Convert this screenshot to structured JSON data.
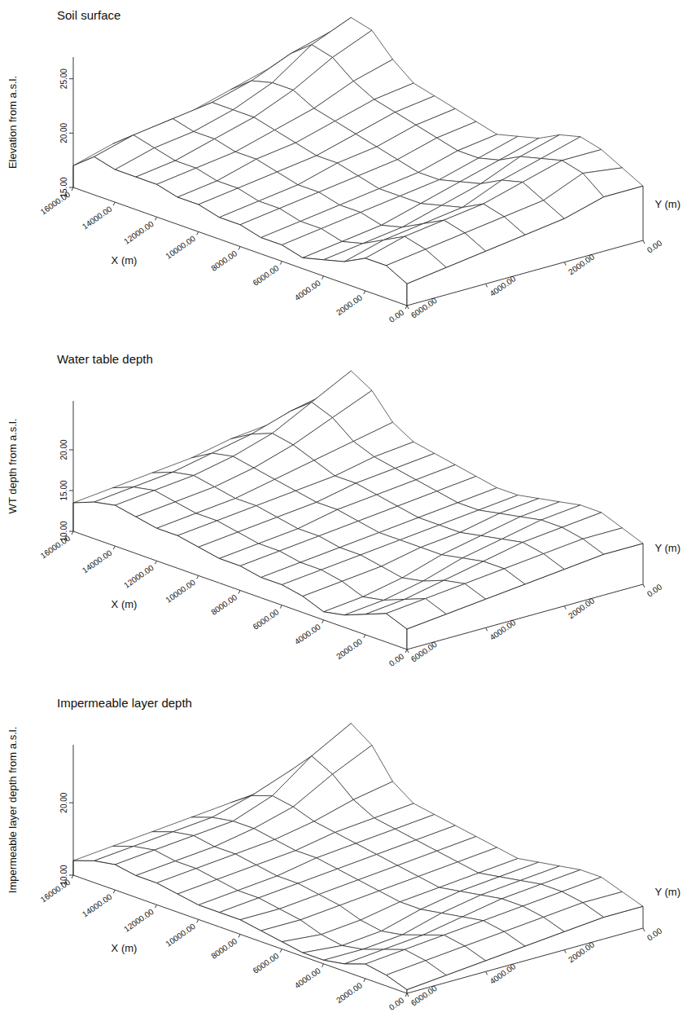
{
  "chart_data": [
    {
      "type": "surface",
      "title": "Soil surface",
      "xlabel": "X (m)",
      "ylabel": "Y (m)",
      "zlabel": "Elevation from a.s.l.",
      "x": [
        0,
        1000,
        2000,
        3000,
        4000,
        5000,
        6000,
        7000,
        8000,
        9000,
        10000,
        11000,
        12000,
        13000,
        14000,
        15000,
        16000
      ],
      "y": [
        0,
        1000,
        2000,
        3000,
        4000,
        5000,
        6000
      ],
      "z": [
        [
          20,
          21,
          22,
          22.5,
          22,
          21,
          20.5,
          20,
          20.5,
          21,
          21.5,
          22,
          23.5,
          25.5,
          26,
          24,
          22
        ],
        [
          20,
          21.5,
          22,
          21.5,
          21,
          20,
          19.5,
          19.5,
          20,
          20.5,
          21,
          21.5,
          22.5,
          24,
          24.5,
          23,
          21
        ],
        [
          19,
          20,
          21,
          20.5,
          19.5,
          19,
          18.5,
          18.5,
          19,
          19.5,
          20,
          20.5,
          21,
          22,
          22,
          21.5,
          20
        ],
        [
          18.5,
          19.5,
          20,
          19,
          18.5,
          18,
          18,
          18,
          18.5,
          19,
          19,
          19.5,
          20,
          20.5,
          20.5,
          20.5,
          19
        ],
        [
          18,
          19,
          19.5,
          18.5,
          17.5,
          17,
          17.5,
          17.5,
          18,
          18,
          18.5,
          19,
          19,
          19.5,
          19.5,
          20,
          18.5
        ],
        [
          17.5,
          18.5,
          19,
          18,
          17,
          16.5,
          17,
          17,
          17.5,
          17.5,
          18,
          18,
          18.5,
          18.5,
          19,
          19.5,
          18
        ],
        [
          17,
          18,
          18,
          17,
          16.5,
          16,
          16.5,
          16.5,
          17,
          17,
          17.5,
          17.5,
          18,
          18,
          18,
          18.5,
          17
        ]
      ],
      "xlim": [
        0,
        16000
      ],
      "ylim": [
        0,
        6000
      ],
      "zlim": [
        15,
        27
      ],
      "xticks": [
        {
          "value": 0,
          "label": "0.00"
        },
        {
          "value": 2000,
          "label": "2000.00"
        },
        {
          "value": 4000,
          "label": "4000.00"
        },
        {
          "value": 6000,
          "label": "6000.00"
        },
        {
          "value": 8000,
          "label": "8000.00"
        },
        {
          "value": 10000,
          "label": "10000.00"
        },
        {
          "value": 12000,
          "label": "12000.00"
        },
        {
          "value": 14000,
          "label": "14000.00"
        },
        {
          "value": 16000,
          "label": "16000.00"
        }
      ],
      "yticks": [
        {
          "value": 0,
          "label": "0.00"
        },
        {
          "value": 2000,
          "label": "2000.00"
        },
        {
          "value": 4000,
          "label": "4000.00"
        },
        {
          "value": 6000,
          "label": "6000.00"
        }
      ],
      "zticks": [
        {
          "value": 15,
          "label": "15.00"
        },
        {
          "value": 20,
          "label": "20.00"
        },
        {
          "value": 25,
          "label": "25.00"
        }
      ]
    },
    {
      "type": "surface",
      "title": "Water table depth",
      "xlabel": "X (m)",
      "ylabel": "Y (m)",
      "zlabel": "WT depth from a.s.l.",
      "x": [
        0,
        1000,
        2000,
        3000,
        4000,
        5000,
        6000,
        7000,
        8000,
        9000,
        10000,
        11000,
        12000,
        13000,
        14000,
        15000,
        16000
      ],
      "y": [
        0,
        1000,
        2000,
        3000,
        4000,
        5000,
        6000
      ],
      "z": [
        [
          15,
          16,
          17,
          17,
          16.5,
          16,
          15.5,
          15.5,
          16,
          16.5,
          17,
          17.5,
          19,
          22,
          23.5,
          20,
          17
        ],
        [
          15,
          16,
          16.5,
          16.5,
          16,
          15.5,
          15,
          15,
          15.5,
          16,
          16.5,
          17,
          18,
          20,
          21,
          19,
          16.5
        ],
        [
          14.5,
          15.5,
          16,
          15.5,
          15,
          14.5,
          14.5,
          14.5,
          15,
          15.5,
          16,
          16,
          17,
          18,
          18.5,
          17.5,
          16
        ],
        [
          14,
          15,
          15,
          14.5,
          14,
          14,
          14,
          14,
          14.5,
          15,
          15,
          15.5,
          16,
          16.5,
          17,
          16.5,
          15
        ],
        [
          13.5,
          14.5,
          14,
          13,
          12.5,
          13,
          13.5,
          13.5,
          14,
          14,
          14.5,
          15,
          15,
          15.5,
          16,
          15.5,
          14.5
        ],
        [
          13,
          14,
          13,
          12,
          11.5,
          12.5,
          13,
          13,
          13.5,
          13.5,
          14,
          14.5,
          14.5,
          15,
          15.5,
          15,
          14
        ],
        [
          12.5,
          13.5,
          12.5,
          11.5,
          11,
          12,
          12.5,
          12.5,
          13,
          13,
          13.5,
          14,
          14,
          14.5,
          15,
          14.5,
          13.5
        ]
      ],
      "xlim": [
        0,
        16000
      ],
      "ylim": [
        0,
        6000
      ],
      "zlim": [
        10,
        26
      ],
      "xticks": [
        {
          "value": 0,
          "label": "0.00"
        },
        {
          "value": 2000,
          "label": "2000.00"
        },
        {
          "value": 4000,
          "label": "4000.00"
        },
        {
          "value": 6000,
          "label": "6000.00"
        },
        {
          "value": 8000,
          "label": "8000.00"
        },
        {
          "value": 10000,
          "label": "10000.00"
        },
        {
          "value": 12000,
          "label": "12000.00"
        },
        {
          "value": 14000,
          "label": "14000.00"
        },
        {
          "value": 16000,
          "label": "16000.00"
        }
      ],
      "yticks": [
        {
          "value": 0,
          "label": "0.00"
        },
        {
          "value": 2000,
          "label": "2000.00"
        },
        {
          "value": 4000,
          "label": "4000.00"
        },
        {
          "value": 6000,
          "label": "6000.00"
        }
      ],
      "zticks": [
        {
          "value": 10,
          "label": "10.00"
        },
        {
          "value": 15,
          "label": "15.00"
        },
        {
          "value": 20,
          "label": "20.00"
        }
      ]
    },
    {
      "type": "surface",
      "title": "Impermeable layer depth",
      "xlabel": "X (m)",
      "ylabel": "Y (m)",
      "zlabel": "Impermeable layer depth from a.s.l.",
      "x": [
        0,
        1000,
        2000,
        3000,
        4000,
        5000,
        6000,
        7000,
        8000,
        9000,
        10000,
        11000,
        12000,
        13000,
        14000,
        15000,
        16000
      ],
      "y": [
        0,
        1000,
        2000,
        3000,
        4000,
        5000,
        6000
      ],
      "z": [
        [
          13,
          14,
          15,
          15,
          14.5,
          14,
          13.5,
          14,
          14.5,
          15,
          15.5,
          16,
          18,
          22,
          24,
          19,
          15
        ],
        [
          13,
          14,
          14.5,
          14.5,
          14,
          13.5,
          13,
          13.5,
          14,
          14.5,
          15,
          15.5,
          17,
          19.5,
          21,
          18,
          14.5
        ],
        [
          12.5,
          13.5,
          14,
          14,
          13.5,
          13,
          12.5,
          13,
          13.5,
          14,
          14.5,
          15,
          15.5,
          16.5,
          17,
          16,
          14
        ],
        [
          12,
          13,
          13.5,
          13,
          12.5,
          12,
          12,
          12.5,
          13,
          13.5,
          14,
          14,
          14.5,
          15,
          15,
          14.5,
          13.5
        ],
        [
          11.5,
          12.5,
          13,
          12,
          11,
          10.5,
          11,
          12,
          12.5,
          13,
          13,
          13.5,
          14,
          14,
          14.5,
          14,
          13
        ],
        [
          11,
          12,
          12.5,
          11.5,
          10.5,
          10,
          10.5,
          11.5,
          12,
          12.5,
          12.5,
          13,
          13.5,
          13.5,
          14,
          13.5,
          12.5
        ],
        [
          10.5,
          11.5,
          12,
          11,
          10.5,
          10.5,
          11,
          11.5,
          12,
          12,
          12,
          12.5,
          13,
          13,
          13.5,
          13,
          12
        ]
      ],
      "xlim": [
        0,
        16000
      ],
      "ylim": [
        0,
        6000
      ],
      "zlim": [
        10,
        28
      ],
      "xticks": [
        {
          "value": 0,
          "label": "0.00"
        },
        {
          "value": 2000,
          "label": "2000.00"
        },
        {
          "value": 4000,
          "label": "4000.00"
        },
        {
          "value": 6000,
          "label": "6000.00"
        },
        {
          "value": 8000,
          "label": "8000.00"
        },
        {
          "value": 10000,
          "label": "10000.00"
        },
        {
          "value": 12000,
          "label": "12000.00"
        },
        {
          "value": 14000,
          "label": "14000.00"
        },
        {
          "value": 16000,
          "label": "16000.00"
        }
      ],
      "yticks": [
        {
          "value": 0,
          "label": "0.00"
        },
        {
          "value": 2000,
          "label": "2000.00"
        },
        {
          "value": 4000,
          "label": "4000.00"
        },
        {
          "value": 6000,
          "label": "6000.00"
        }
      ],
      "zticks": [
        {
          "value": 10,
          "label": "10.00"
        },
        {
          "value": 20,
          "label": "20.00"
        }
      ]
    }
  ]
}
